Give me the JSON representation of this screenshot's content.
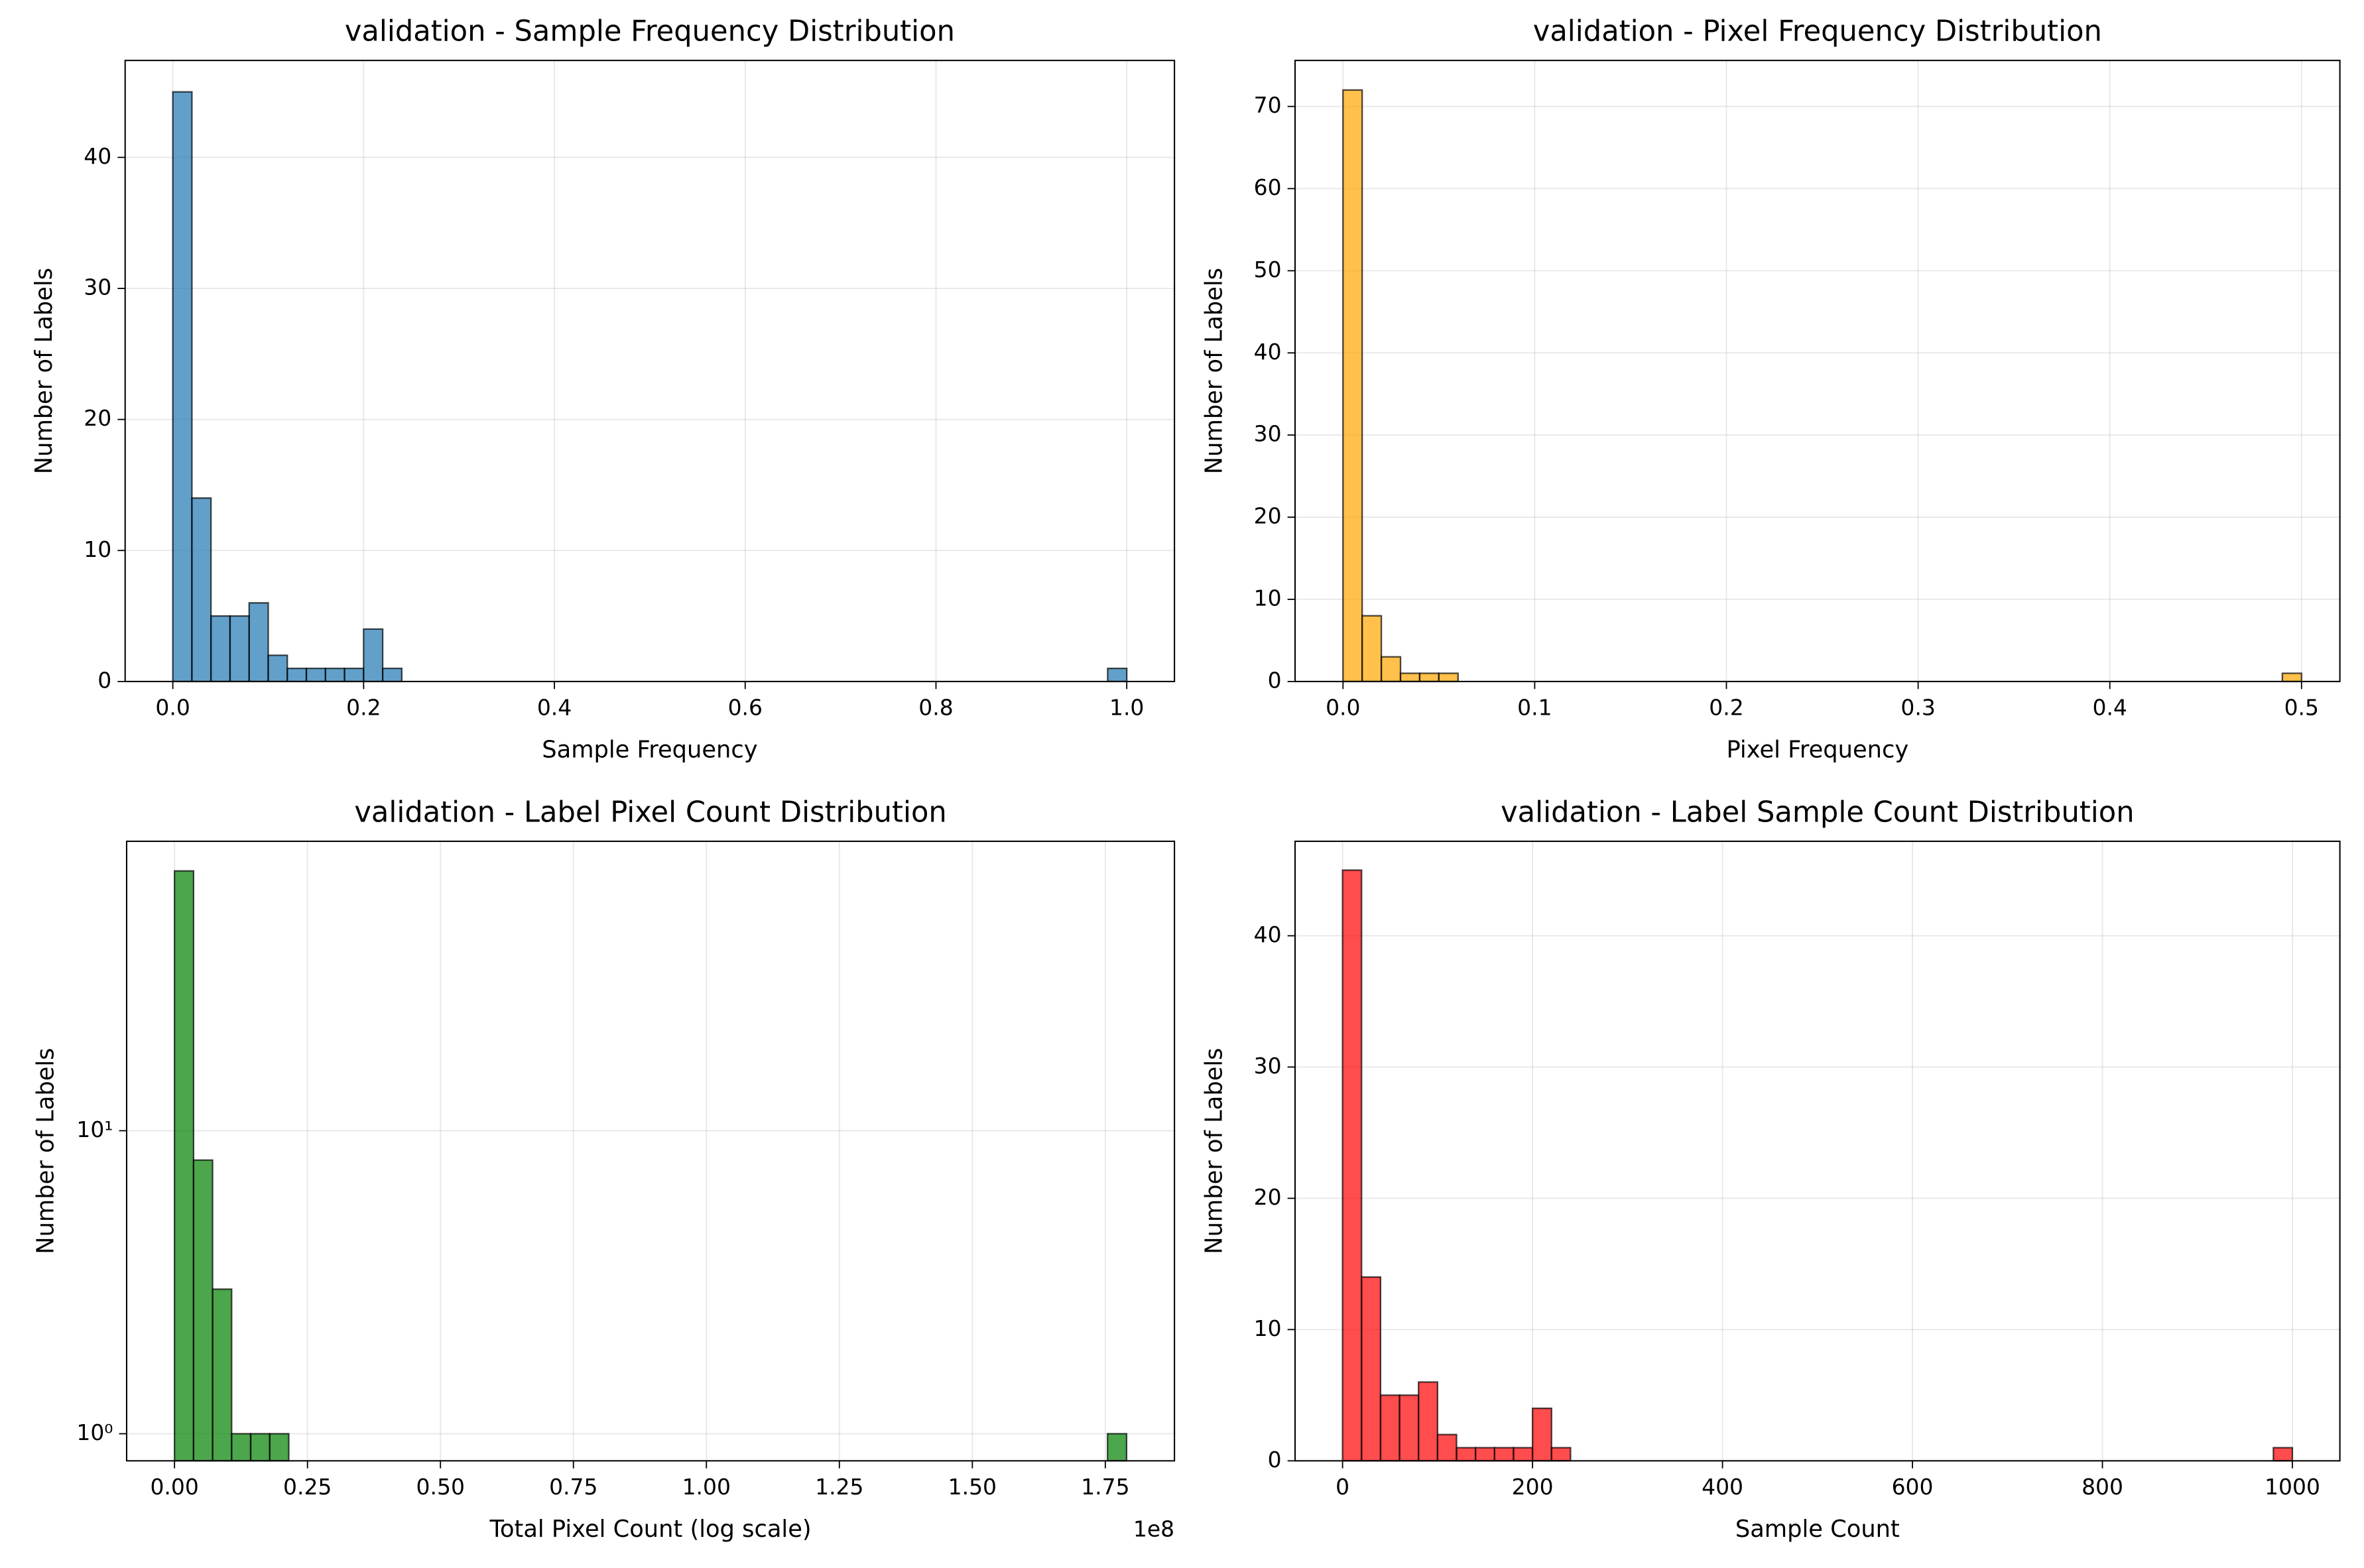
{
  "chart_data": [
    {
      "type": "histogram",
      "title": "validation - Sample Frequency Distribution",
      "xlabel": "Sample Frequency",
      "ylabel": "Number of Labels",
      "bins": [
        0,
        0.02,
        0.04,
        0.06,
        0.08,
        0.1,
        0.12,
        0.14,
        0.16,
        0.18,
        0.2,
        0.22,
        0.24,
        0.26,
        0.28,
        0.3,
        0.32,
        0.34,
        0.36,
        0.38,
        0.4,
        0.42,
        0.44,
        0.46,
        0.48,
        0.5,
        0.52,
        0.54,
        0.56,
        0.58,
        0.6,
        0.62,
        0.64,
        0.66,
        0.68,
        0.7,
        0.72,
        0.74,
        0.76,
        0.78,
        0.8,
        0.82,
        0.84,
        0.86,
        0.88,
        0.9,
        0.92,
        0.94,
        0.96,
        0.98,
        1
      ],
      "counts": [
        45,
        14,
        5,
        5,
        6,
        2,
        1,
        1,
        1,
        1,
        4,
        1,
        0,
        0,
        0,
        0,
        0,
        0,
        0,
        0,
        0,
        0,
        0,
        0,
        0,
        0,
        0,
        0,
        0,
        0,
        0,
        0,
        0,
        0,
        0,
        0,
        0,
        0,
        0,
        0,
        0,
        0,
        0,
        0,
        0,
        0,
        0,
        0,
        0,
        1
      ],
      "color": "#1f77b4",
      "xlim": [
        -0.05,
        1.05
      ],
      "ylim": [
        0,
        47.4
      ],
      "xticks": [
        {
          "value": 0,
          "label": "0.0"
        },
        0.2,
        0.4,
        0.6,
        0.8,
        {
          "value": 1,
          "label": "1.0"
        }
      ],
      "yticks": [
        0,
        10,
        20,
        30,
        40
      ],
      "grid": true
    },
    {
      "type": "histogram",
      "title": "validation - Pixel Frequency Distribution",
      "xlabel": "Pixel Frequency",
      "ylabel": "Number of Labels",
      "bins": [
        0,
        0.01,
        0.02,
        0.03,
        0.04,
        0.05,
        0.06,
        0.07,
        0.08,
        0.09,
        0.1,
        0.11,
        0.12,
        0.13,
        0.14,
        0.15,
        0.16,
        0.17,
        0.18,
        0.19,
        0.2,
        0.21,
        0.22,
        0.23,
        0.24,
        0.25,
        0.26,
        0.27,
        0.28,
        0.29,
        0.3,
        0.31,
        0.32,
        0.33,
        0.34,
        0.35,
        0.36,
        0.37,
        0.38,
        0.39,
        0.4,
        0.41,
        0.42,
        0.43,
        0.44,
        0.45,
        0.46,
        0.47,
        0.48,
        0.49,
        0.5
      ],
      "counts": [
        72,
        8,
        3,
        1,
        1,
        1,
        0,
        0,
        0,
        0,
        0,
        0,
        0,
        0,
        0,
        0,
        0,
        0,
        0,
        0,
        0,
        0,
        0,
        0,
        0,
        0,
        0,
        0,
        0,
        0,
        0,
        0,
        0,
        0,
        0,
        0,
        0,
        0,
        0,
        0,
        0,
        0,
        0,
        0,
        0,
        0,
        0,
        0,
        0,
        1
      ],
      "color": "#ffa500",
      "xlim": [
        -0.025,
        0.52
      ],
      "ylim": [
        0,
        75.6
      ],
      "xticks": [
        {
          "value": 0,
          "label": "0.0"
        },
        0.1,
        0.2,
        0.3,
        0.4,
        0.5
      ],
      "yticks": [
        0,
        10,
        20,
        30,
        40,
        50,
        60,
        70
      ],
      "grid": true
    },
    {
      "type": "histogram",
      "title": "validation - Label Pixel Count Distribution",
      "xlabel": "Total Pixel Count (log scale)",
      "ylabel": "Number of Labels",
      "x_offset_label": "1e8",
      "bins": [
        0,
        3580000,
        7160000,
        10740000,
        14320000,
        17900000,
        21480000,
        25060000,
        28640000,
        32220000,
        35800000,
        39380000,
        42960000,
        46540000,
        50120000,
        53700000,
        57280000,
        60860000,
        64440000,
        68020000,
        71600000,
        75180000,
        78760000,
        82340000,
        85920000,
        89500000,
        93080000,
        96660000,
        100240000,
        103820000,
        107400000,
        110980000,
        114560000,
        118140000,
        121720000,
        125300000,
        128880000,
        132460000,
        136040000,
        139620000,
        143200000,
        146780000,
        150360000,
        153940000,
        157520000,
        161100000,
        164680000,
        168260000,
        171840000,
        175420000,
        179000000
      ],
      "counts": [
        72,
        8,
        3,
        1,
        1,
        1,
        0,
        0,
        0,
        0,
        0,
        0,
        0,
        0,
        0,
        0,
        0,
        0,
        0,
        0,
        0,
        0,
        0,
        0,
        0,
        0,
        0,
        0,
        0,
        0,
        0,
        0,
        0,
        0,
        0,
        0,
        0,
        0,
        0,
        0,
        0,
        0,
        0,
        0,
        0,
        0,
        0,
        0,
        0,
        1
      ],
      "color": "#008000",
      "xlim": [
        -9000000,
        188000000
      ],
      "ylim": [
        0.814,
        90.2
      ],
      "log_y": true,
      "xticks": [
        {
          "value": 0,
          "label": "0.00"
        },
        {
          "value": 25000000,
          "label": "0.25"
        },
        {
          "value": 50000000,
          "label": "0.50"
        },
        {
          "value": 75000000,
          "label": "0.75"
        },
        {
          "value": 100000000,
          "label": "1.00"
        },
        {
          "value": 125000000,
          "label": "1.25"
        },
        {
          "value": 150000000,
          "label": "1.50"
        },
        {
          "value": 175000000,
          "label": "1.75"
        }
      ],
      "yticks": [
        {
          "value": 1,
          "label": "10⁰"
        },
        {
          "value": 10,
          "label": "10¹"
        }
      ],
      "grid": true
    },
    {
      "type": "histogram",
      "title": "validation - Label Sample Count Distribution",
      "xlabel": "Sample Count",
      "ylabel": "Number of Labels",
      "bins": [
        0,
        20,
        40,
        60,
        80,
        100,
        120,
        140,
        160,
        180,
        200,
        220,
        240,
        260,
        280,
        300,
        320,
        340,
        360,
        380,
        400,
        420,
        440,
        460,
        480,
        500,
        520,
        540,
        560,
        580,
        600,
        620,
        640,
        660,
        680,
        700,
        720,
        740,
        760,
        780,
        800,
        820,
        840,
        860,
        880,
        900,
        920,
        940,
        960,
        980,
        1000
      ],
      "counts": [
        45,
        14,
        5,
        5,
        6,
        2,
        1,
        1,
        1,
        1,
        4,
        1,
        0,
        0,
        0,
        0,
        0,
        0,
        0,
        0,
        0,
        0,
        0,
        0,
        0,
        0,
        0,
        0,
        0,
        0,
        0,
        0,
        0,
        0,
        0,
        0,
        0,
        0,
        0,
        0,
        0,
        0,
        0,
        0,
        0,
        0,
        0,
        0,
        0,
        1
      ],
      "color": "#ff0000",
      "xlim": [
        -50,
        1050
      ],
      "ylim": [
        0,
        47.2
      ],
      "xticks": [
        0,
        200,
        400,
        600,
        800,
        1000
      ],
      "yticks": [
        0,
        10,
        20,
        30,
        40
      ],
      "grid": true
    }
  ]
}
